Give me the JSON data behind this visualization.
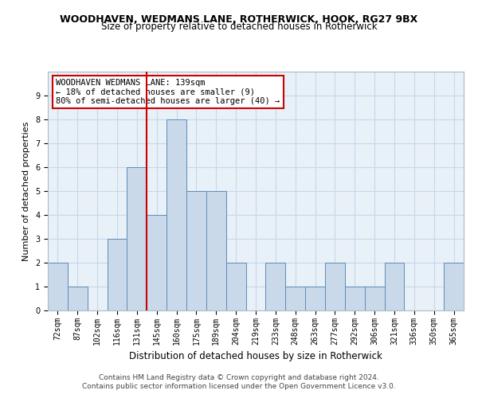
{
  "title": "WOODHAVEN, WEDMANS LANE, ROTHERWICK, HOOK, RG27 9BX",
  "subtitle": "Size of property relative to detached houses in Rotherwick",
  "xlabel": "Distribution of detached houses by size in Rotherwick",
  "ylabel": "Number of detached properties",
  "categories": [
    "72sqm",
    "87sqm",
    "102sqm",
    "116sqm",
    "131sqm",
    "145sqm",
    "160sqm",
    "175sqm",
    "189sqm",
    "204sqm",
    "219sqm",
    "233sqm",
    "248sqm",
    "263sqm",
    "277sqm",
    "292sqm",
    "306sqm",
    "321sqm",
    "336sqm",
    "350sqm",
    "365sqm"
  ],
  "values": [
    2,
    1,
    0,
    3,
    6,
    4,
    8,
    5,
    5,
    2,
    0,
    2,
    1,
    1,
    2,
    1,
    1,
    2,
    0,
    0,
    2
  ],
  "bar_color": "#c9d9ea",
  "bar_edge_color": "#5b8db8",
  "vline_index": 4,
  "vline_color": "#cc0000",
  "annotation_line1": "WOODHAVEN WEDMANS LANE: 139sqm",
  "annotation_line2": "← 18% of detached houses are smaller (9)",
  "annotation_line3": "80% of semi-detached houses are larger (40) →",
  "annotation_box_facecolor": "#ffffff",
  "annotation_box_edgecolor": "#cc0000",
  "ylim": [
    0,
    10
  ],
  "yticks": [
    0,
    1,
    2,
    3,
    4,
    5,
    6,
    7,
    8,
    9,
    10
  ],
  "grid_color": "#c8d8e8",
  "background_color": "#e8f0f8",
  "title_fontsize": 9,
  "subtitle_fontsize": 8.5,
  "ylabel_fontsize": 8,
  "xlabel_fontsize": 8.5,
  "tick_fontsize": 7,
  "annot_fontsize": 7.5,
  "footer1": "Contains HM Land Registry data © Crown copyright and database right 2024.",
  "footer2": "Contains public sector information licensed under the Open Government Licence v3.0.",
  "footer_fontsize": 6.5
}
